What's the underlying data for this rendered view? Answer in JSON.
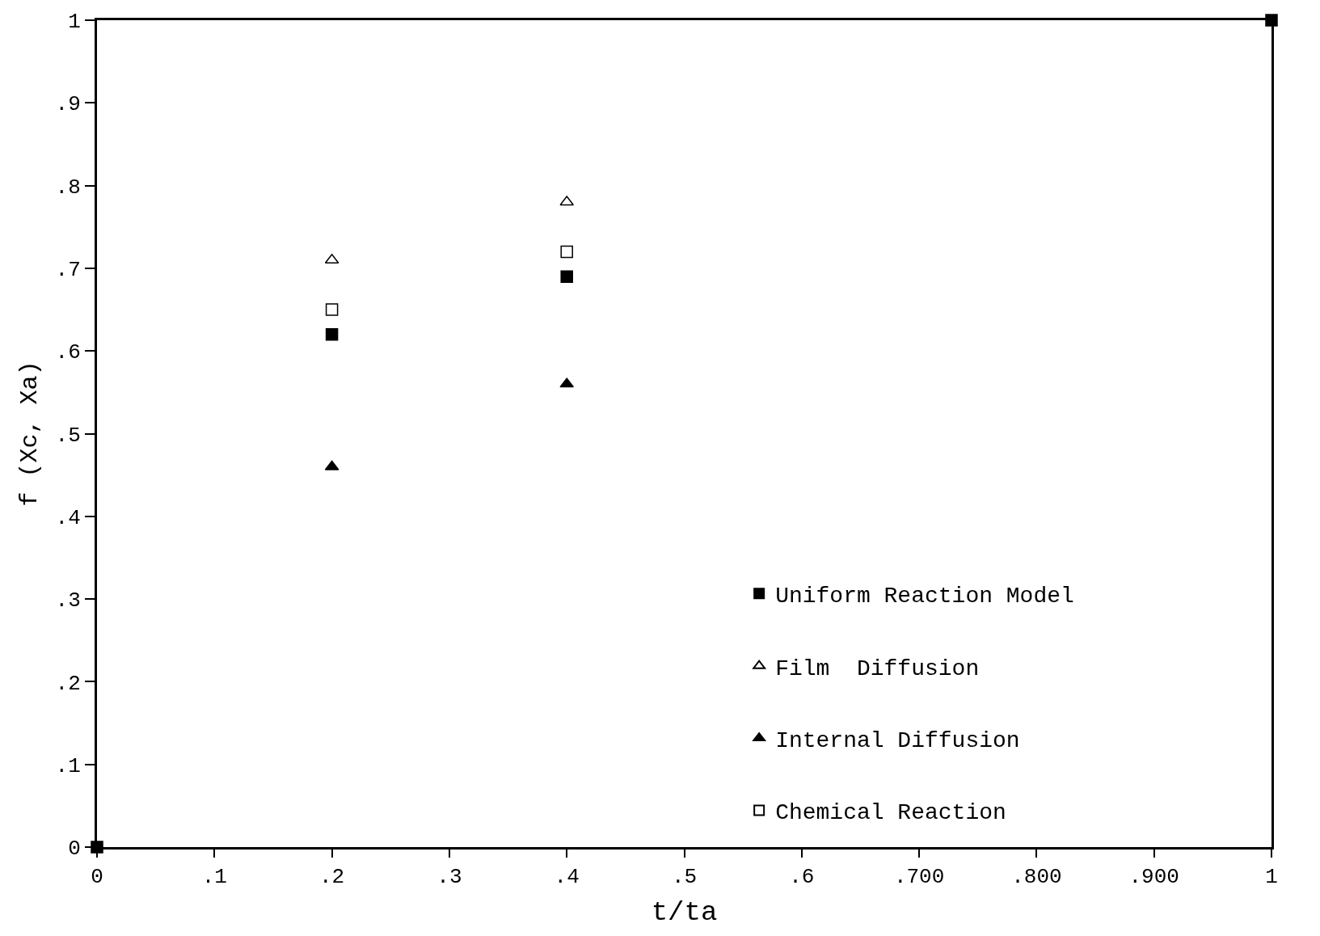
{
  "chart_data": {
    "type": "scatter",
    "xlabel": "t/ta",
    "ylabel": "f (Xc, Xa)",
    "xlim": [
      0,
      1
    ],
    "ylim": [
      0,
      1
    ],
    "xticks": [
      0,
      {
        "value": 0.1,
        "label": ".1"
      },
      {
        "value": 0.2,
        "label": ".2"
      },
      {
        "value": 0.3,
        "label": ".3"
      },
      {
        "value": 0.4,
        "label": ".4"
      },
      {
        "value": 0.5,
        "label": ".5"
      },
      {
        "value": 0.6,
        "label": ".6"
      },
      {
        "value": 0.7,
        "label": ".700"
      },
      {
        "value": 0.8,
        "label": ".800"
      },
      {
        "value": 0.9,
        "label": ".900"
      },
      1
    ],
    "yticks": [
      0,
      {
        "value": 0.1,
        "label": ".1"
      },
      {
        "value": 0.2,
        "label": ".2"
      },
      {
        "value": 0.3,
        "label": ".3"
      },
      {
        "value": 0.4,
        "label": ".4"
      },
      {
        "value": 0.5,
        "label": ".5"
      },
      {
        "value": 0.6,
        "label": ".6"
      },
      {
        "value": 0.7,
        "label": ".7"
      },
      {
        "value": 0.8,
        "label": ".8"
      },
      {
        "value": 0.9,
        "label": ".9"
      },
      1
    ],
    "legend": "bottom right",
    "series": [
      {
        "name": "Uniform Reaction Model",
        "color": "#000000",
        "marker": "square",
        "x": [
          0,
          0.2,
          0.4,
          1
        ],
        "values": [
          0,
          0.62,
          0.69,
          1
        ]
      },
      {
        "name": "Film  Diffusion",
        "color": "#000000",
        "marker": "triangle",
        "x": [
          0.2,
          0.4
        ],
        "values": [
          0.71,
          0.78
        ]
      },
      {
        "name": "Internal Diffusion",
        "color": "#000000",
        "marker": "triangle",
        "x": [
          0.2,
          0.4
        ],
        "values": [
          0.46,
          0.56
        ]
      },
      {
        "name": "Chemical Reaction",
        "color": "#000000",
        "marker": "square",
        "x": [
          0.2,
          0.4
        ],
        "values": [
          0.65,
          0.72
        ]
      }
    ]
  }
}
